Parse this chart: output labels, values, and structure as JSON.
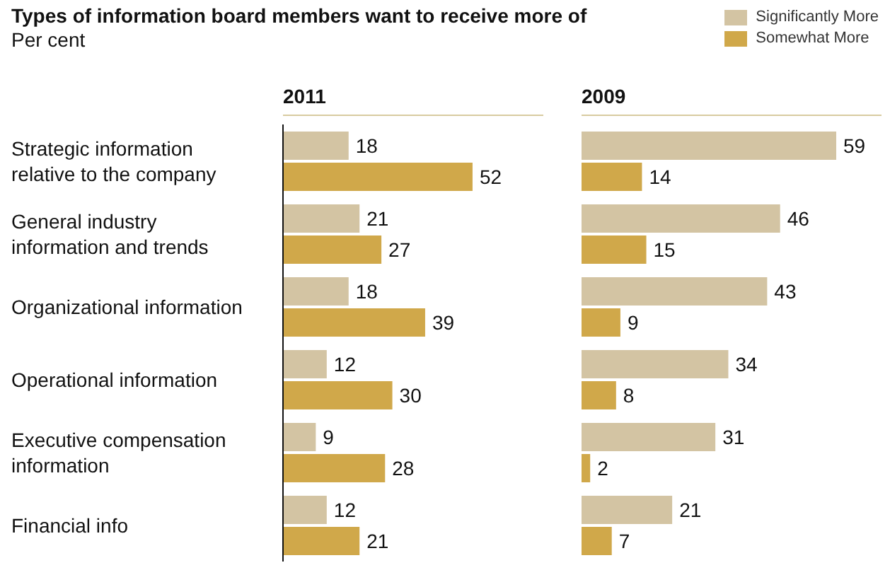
{
  "chart_data": [
    {
      "type": "other",
      "title": "Types of information board members want to receive more of",
      "subtitle": "Per cent"
    },
    {
      "type": "bar",
      "orientation": "horizontal",
      "title": "2011",
      "categories": [
        "Strategic information relative to the company",
        "General industry information and trends",
        "Organizational information",
        "Operational information",
        "Executive compensation information",
        "Financial info"
      ],
      "series": [
        {
          "color": "#d3c4a3",
          "values": [
            18,
            21,
            18,
            12,
            9,
            12
          ]
        },
        {
          "color": "#d0a84a",
          "values": [
            52,
            27,
            39,
            30,
            28,
            21
          ]
        }
      ],
      "data_labels": true,
      "tick_labels": "y",
      "grid": false,
      "legend": false
    },
    {
      "type": "bar",
      "orientation": "horizontal",
      "title": "2009",
      "categories": [
        null,
        null,
        null,
        null,
        null,
        null
      ],
      "series": [
        {
          "name": "Significantly More",
          "color": "#d3c4a3",
          "values": [
            59,
            46,
            43,
            34,
            31,
            21
          ]
        },
        {
          "name": "Somewhat More",
          "color": "#d0a84a",
          "values": [
            14,
            15,
            9,
            8,
            2,
            7
          ]
        }
      ],
      "data_labels": true,
      "tick_labels": false,
      "grid": false,
      "legend": "top right"
    }
  ]
}
